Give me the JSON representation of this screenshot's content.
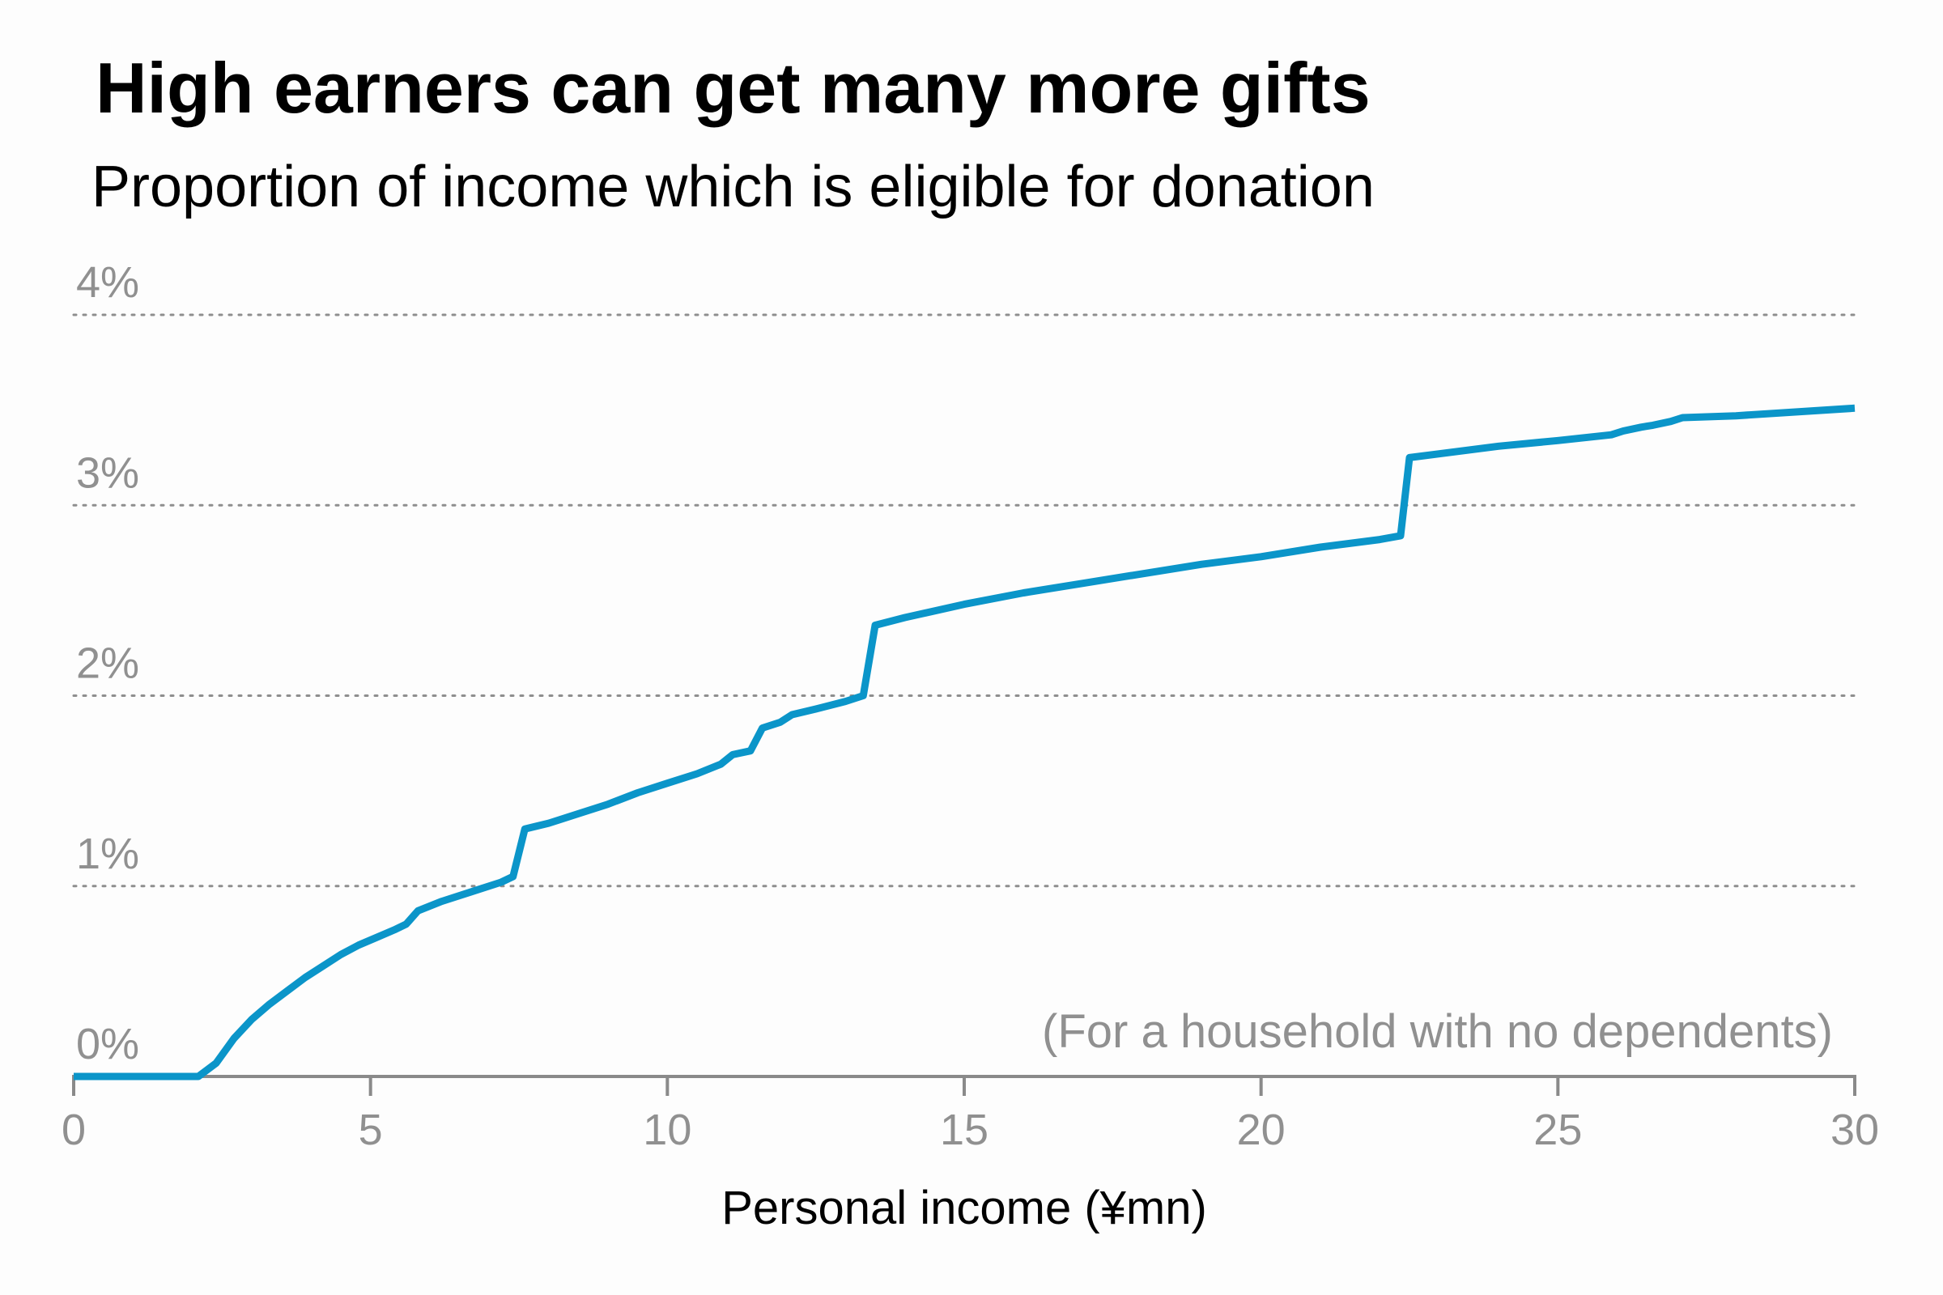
{
  "chart_data": {
    "type": "line",
    "title": "High earners can get many more gifts",
    "subtitle": "Proportion of income which is eligible for donation",
    "xlabel": "Personal income (¥mn)",
    "annotation": "(For a household with no dependents)",
    "xlim": [
      0,
      30
    ],
    "ylim": [
      0,
      4
    ],
    "x_ticks": [
      0,
      5,
      10,
      15,
      20,
      25,
      30
    ],
    "x_tick_labels": [
      "0",
      "5",
      "10",
      "15",
      "20",
      "25",
      "30"
    ],
    "y_ticks": [
      0,
      1,
      2,
      3,
      4
    ],
    "y_tick_labels": [
      "0%",
      "1%",
      "2%",
      "3%",
      "4%"
    ],
    "grid": "horizontal dotted",
    "series": [
      {
        "color": "#0b95c9",
        "x": [
          0,
          2.1,
          2.4,
          2.7,
          3.0,
          3.3,
          3.6,
          3.9,
          4.2,
          4.5,
          4.8,
          5.1,
          5.4,
          5.6,
          5.8,
          6.2,
          6.7,
          7.2,
          7.4,
          7.6,
          8.0,
          8.5,
          9.0,
          9.5,
          10.0,
          10.5,
          10.9,
          11.1,
          11.4,
          11.6,
          11.9,
          12.1,
          12.5,
          13.0,
          13.3,
          13.5,
          14.0,
          15.0,
          16.0,
          17.0,
          18.0,
          19.0,
          20.0,
          21.0,
          22.0,
          22.35,
          22.5,
          23.0,
          24.0,
          25.0,
          25.9,
          26.1,
          26.4,
          26.6,
          26.9,
          27.1,
          28.0,
          29.0,
          30.0
        ],
        "y": [
          0.0,
          0.0,
          0.07,
          0.2,
          0.3,
          0.38,
          0.45,
          0.52,
          0.58,
          0.64,
          0.69,
          0.73,
          0.77,
          0.8,
          0.87,
          0.92,
          0.97,
          1.02,
          1.05,
          1.3,
          1.33,
          1.38,
          1.43,
          1.49,
          1.54,
          1.59,
          1.64,
          1.69,
          1.71,
          1.83,
          1.86,
          1.9,
          1.93,
          1.97,
          2.0,
          2.37,
          2.41,
          2.48,
          2.54,
          2.59,
          2.64,
          2.69,
          2.73,
          2.78,
          2.82,
          2.84,
          3.25,
          3.27,
          3.31,
          3.34,
          3.37,
          3.39,
          3.41,
          3.42,
          3.44,
          3.46,
          3.47,
          3.49,
          3.51
        ]
      }
    ]
  }
}
